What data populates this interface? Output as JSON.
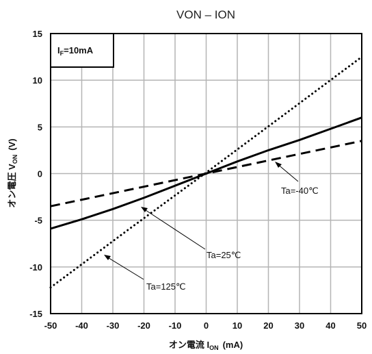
{
  "chart_data": {
    "type": "line",
    "title": "VON – ION",
    "xlabel": {
      "main": "オン電流 I",
      "sub": "ON",
      "unit": "(mA)"
    },
    "ylabel": {
      "main": "オン電圧 V",
      "sub": "ON",
      "unit": "(V)"
    },
    "xlim": [
      -50,
      50
    ],
    "ylim": [
      -15,
      15
    ],
    "xticks": [
      "-50",
      "-40",
      "-30",
      "-20",
      "-10",
      "0",
      "10",
      "20",
      "30",
      "40",
      "50"
    ],
    "yticks": [
      "15",
      "10",
      "5",
      "0",
      "-5",
      "-10",
      "-15"
    ],
    "grid": true,
    "condition": {
      "main": "I",
      "sub": "F",
      "rest": "=10mA"
    },
    "series": [
      {
        "name": "Ta=-40℃",
        "style": "dashed",
        "x": [
          -50,
          -25,
          0,
          25,
          50
        ],
        "y": [
          -3.5,
          -1.75,
          0,
          1.75,
          3.5
        ]
      },
      {
        "name": "Ta=25℃",
        "style": "solid",
        "x": [
          -50,
          -40,
          -30,
          -20,
          -10,
          0,
          10,
          20,
          30,
          40,
          50
        ],
        "y": [
          -5.9,
          -4.9,
          -3.8,
          -2.6,
          -1.3,
          0,
          1.3,
          2.5,
          3.6,
          4.8,
          6.0
        ]
      },
      {
        "name": "Ta=125℃",
        "style": "dotted",
        "x": [
          -50,
          -25,
          0,
          25,
          50
        ],
        "y": [
          -12.2,
          -6.0,
          0.1,
          6.3,
          12.5
        ]
      }
    ],
    "annotations": [
      {
        "text": "Ta=-40℃",
        "series": 0
      },
      {
        "text": "Ta=25℃",
        "series": 1
      },
      {
        "text": "Ta=125℃",
        "series": 2
      }
    ]
  }
}
